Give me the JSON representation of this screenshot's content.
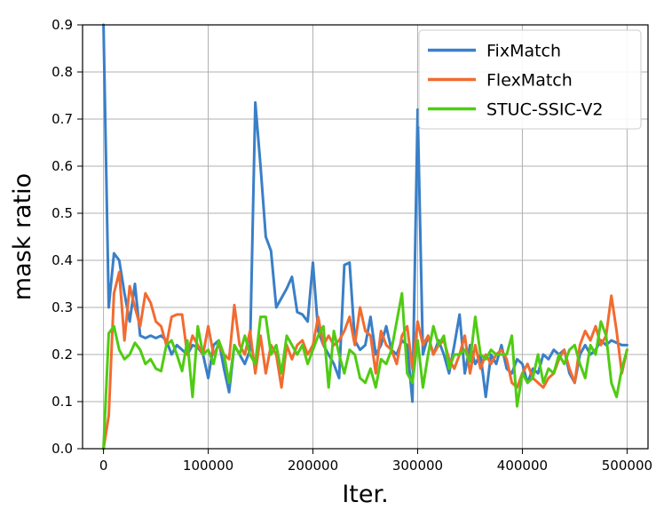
{
  "chart_data": {
    "type": "line",
    "title": "",
    "xlabel": "Iter.",
    "ylabel": "mask ratio",
    "xlim": [
      -20000,
      520000
    ],
    "ylim": [
      0,
      0.9
    ],
    "xticks": [
      0,
      100000,
      200000,
      300000,
      400000,
      500000
    ],
    "xtick_labels": [
      "0",
      "100000",
      "200000",
      "300000",
      "400000",
      "500000"
    ],
    "yticks": [
      0,
      0.1,
      0.2,
      0.3,
      0.4,
      0.5,
      0.6,
      0.7,
      0.8,
      0.9
    ],
    "ytick_labels": [
      "0.0",
      "0.1",
      "0.2",
      "0.3",
      "0.4",
      "0.5",
      "0.6",
      "0.7",
      "0.8",
      "0.9"
    ],
    "grid": true,
    "legend_position": "top-right",
    "series": [
      {
        "name": "FixMatch",
        "color": "#3a7fc7",
        "x": [
          0,
          5000,
          10000,
          15000,
          20000,
          25000,
          30000,
          35000,
          40000,
          45000,
          50000,
          55000,
          60000,
          65000,
          70000,
          75000,
          80000,
          85000,
          90000,
          95000,
          100000,
          105000,
          110000,
          115000,
          120000,
          125000,
          130000,
          135000,
          140000,
          145000,
          150000,
          155000,
          160000,
          165000,
          170000,
          175000,
          180000,
          185000,
          190000,
          195000,
          200000,
          205000,
          210000,
          215000,
          220000,
          225000,
          230000,
          235000,
          240000,
          245000,
          250000,
          255000,
          260000,
          265000,
          270000,
          275000,
          280000,
          285000,
          290000,
          295000,
          300000,
          305000,
          310000,
          315000,
          320000,
          325000,
          330000,
          335000,
          340000,
          345000,
          350000,
          355000,
          360000,
          365000,
          370000,
          375000,
          380000,
          385000,
          390000,
          395000,
          400000,
          405000,
          410000,
          415000,
          420000,
          425000,
          430000,
          435000,
          440000,
          445000,
          450000,
          455000,
          460000,
          465000,
          470000,
          475000,
          480000,
          485000,
          490000,
          495000,
          500000
        ],
        "values": [
          0.9,
          0.3,
          0.415,
          0.4,
          0.33,
          0.27,
          0.35,
          0.24,
          0.235,
          0.24,
          0.235,
          0.24,
          0.23,
          0.2,
          0.22,
          0.21,
          0.2,
          0.22,
          0.215,
          0.2,
          0.15,
          0.22,
          0.23,
          0.17,
          0.12,
          0.22,
          0.2,
          0.18,
          0.21,
          0.735,
          0.6,
          0.45,
          0.42,
          0.3,
          0.32,
          0.34,
          0.365,
          0.29,
          0.285,
          0.27,
          0.395,
          0.25,
          0.22,
          0.2,
          0.18,
          0.15,
          0.39,
          0.395,
          0.23,
          0.21,
          0.22,
          0.28,
          0.2,
          0.22,
          0.26,
          0.21,
          0.2,
          0.23,
          0.22,
          0.1,
          0.72,
          0.2,
          0.24,
          0.2,
          0.23,
          0.2,
          0.16,
          0.22,
          0.285,
          0.16,
          0.22,
          0.18,
          0.2,
          0.11,
          0.2,
          0.18,
          0.22,
          0.17,
          0.16,
          0.19,
          0.18,
          0.14,
          0.17,
          0.16,
          0.2,
          0.19,
          0.21,
          0.2,
          0.21,
          0.16,
          0.14,
          0.2,
          0.22,
          0.2,
          0.21,
          0.23,
          0.22,
          0.23,
          0.225,
          0.22,
          0.22
        ]
      },
      {
        "name": "FlexMatch",
        "color": "#f26b30",
        "x": [
          0,
          5000,
          10000,
          15000,
          20000,
          25000,
          30000,
          35000,
          40000,
          45000,
          50000,
          55000,
          60000,
          65000,
          70000,
          75000,
          80000,
          85000,
          90000,
          95000,
          100000,
          105000,
          110000,
          115000,
          120000,
          125000,
          130000,
          135000,
          140000,
          145000,
          150000,
          155000,
          160000,
          165000,
          170000,
          175000,
          180000,
          185000,
          190000,
          195000,
          200000,
          205000,
          210000,
          215000,
          220000,
          225000,
          230000,
          235000,
          240000,
          245000,
          250000,
          255000,
          260000,
          265000,
          270000,
          275000,
          280000,
          285000,
          290000,
          295000,
          300000,
          305000,
          310000,
          315000,
          320000,
          325000,
          330000,
          335000,
          340000,
          345000,
          350000,
          355000,
          360000,
          365000,
          370000,
          375000,
          380000,
          385000,
          390000,
          395000,
          400000,
          405000,
          410000,
          415000,
          420000,
          425000,
          430000,
          435000,
          440000,
          445000,
          450000,
          455000,
          460000,
          465000,
          470000,
          475000,
          480000,
          485000,
          490000,
          495000,
          500000
        ],
        "values": [
          0.0,
          0.07,
          0.33,
          0.375,
          0.23,
          0.345,
          0.3,
          0.26,
          0.33,
          0.31,
          0.27,
          0.26,
          0.22,
          0.28,
          0.285,
          0.285,
          0.2,
          0.24,
          0.22,
          0.2,
          0.26,
          0.2,
          0.22,
          0.2,
          0.19,
          0.305,
          0.22,
          0.2,
          0.25,
          0.16,
          0.24,
          0.16,
          0.22,
          0.2,
          0.13,
          0.22,
          0.19,
          0.22,
          0.23,
          0.2,
          0.22,
          0.28,
          0.22,
          0.24,
          0.22,
          0.23,
          0.25,
          0.28,
          0.22,
          0.3,
          0.25,
          0.24,
          0.16,
          0.25,
          0.22,
          0.21,
          0.18,
          0.24,
          0.26,
          0.17,
          0.27,
          0.22,
          0.24,
          0.2,
          0.22,
          0.23,
          0.19,
          0.17,
          0.2,
          0.24,
          0.16,
          0.22,
          0.17,
          0.2,
          0.18,
          0.2,
          0.21,
          0.19,
          0.14,
          0.13,
          0.16,
          0.18,
          0.15,
          0.14,
          0.13,
          0.15,
          0.16,
          0.19,
          0.21,
          0.17,
          0.14,
          0.22,
          0.25,
          0.23,
          0.26,
          0.22,
          0.24,
          0.325,
          0.25,
          0.16,
          0.21
        ]
      },
      {
        "name": "STUC-SSIC-V2",
        "color": "#4fcc12",
        "x": [
          0,
          5000,
          10000,
          15000,
          20000,
          25000,
          30000,
          35000,
          40000,
          45000,
          50000,
          55000,
          60000,
          65000,
          70000,
          75000,
          80000,
          85000,
          90000,
          95000,
          100000,
          105000,
          110000,
          115000,
          120000,
          125000,
          130000,
          135000,
          140000,
          145000,
          150000,
          155000,
          160000,
          165000,
          170000,
          175000,
          180000,
          185000,
          190000,
          195000,
          200000,
          205000,
          210000,
          215000,
          220000,
          225000,
          230000,
          235000,
          240000,
          245000,
          250000,
          255000,
          260000,
          265000,
          270000,
          275000,
          280000,
          285000,
          290000,
          295000,
          300000,
          305000,
          310000,
          315000,
          320000,
          325000,
          330000,
          335000,
          340000,
          345000,
          350000,
          355000,
          360000,
          365000,
          370000,
          375000,
          380000,
          385000,
          390000,
          395000,
          400000,
          405000,
          410000,
          415000,
          420000,
          425000,
          430000,
          435000,
          440000,
          445000,
          450000,
          455000,
          460000,
          465000,
          470000,
          475000,
          480000,
          485000,
          490000,
          495000,
          500000
        ],
        "values": [
          0.0,
          0.245,
          0.26,
          0.21,
          0.19,
          0.2,
          0.225,
          0.21,
          0.18,
          0.19,
          0.17,
          0.165,
          0.22,
          0.23,
          0.2,
          0.165,
          0.23,
          0.11,
          0.26,
          0.2,
          0.21,
          0.18,
          0.23,
          0.2,
          0.14,
          0.22,
          0.2,
          0.24,
          0.2,
          0.18,
          0.28,
          0.28,
          0.2,
          0.22,
          0.16,
          0.24,
          0.22,
          0.2,
          0.22,
          0.18,
          0.21,
          0.24,
          0.26,
          0.13,
          0.25,
          0.2,
          0.16,
          0.21,
          0.2,
          0.15,
          0.14,
          0.17,
          0.13,
          0.19,
          0.18,
          0.21,
          0.27,
          0.33,
          0.16,
          0.14,
          0.23,
          0.13,
          0.2,
          0.26,
          0.22,
          0.24,
          0.17,
          0.2,
          0.2,
          0.21,
          0.185,
          0.28,
          0.2,
          0.19,
          0.21,
          0.2,
          0.2,
          0.2,
          0.24,
          0.09,
          0.16,
          0.14,
          0.15,
          0.2,
          0.14,
          0.17,
          0.16,
          0.2,
          0.18,
          0.21,
          0.22,
          0.18,
          0.15,
          0.22,
          0.2,
          0.27,
          0.24,
          0.14,
          0.11,
          0.17,
          0.21
        ]
      }
    ]
  }
}
